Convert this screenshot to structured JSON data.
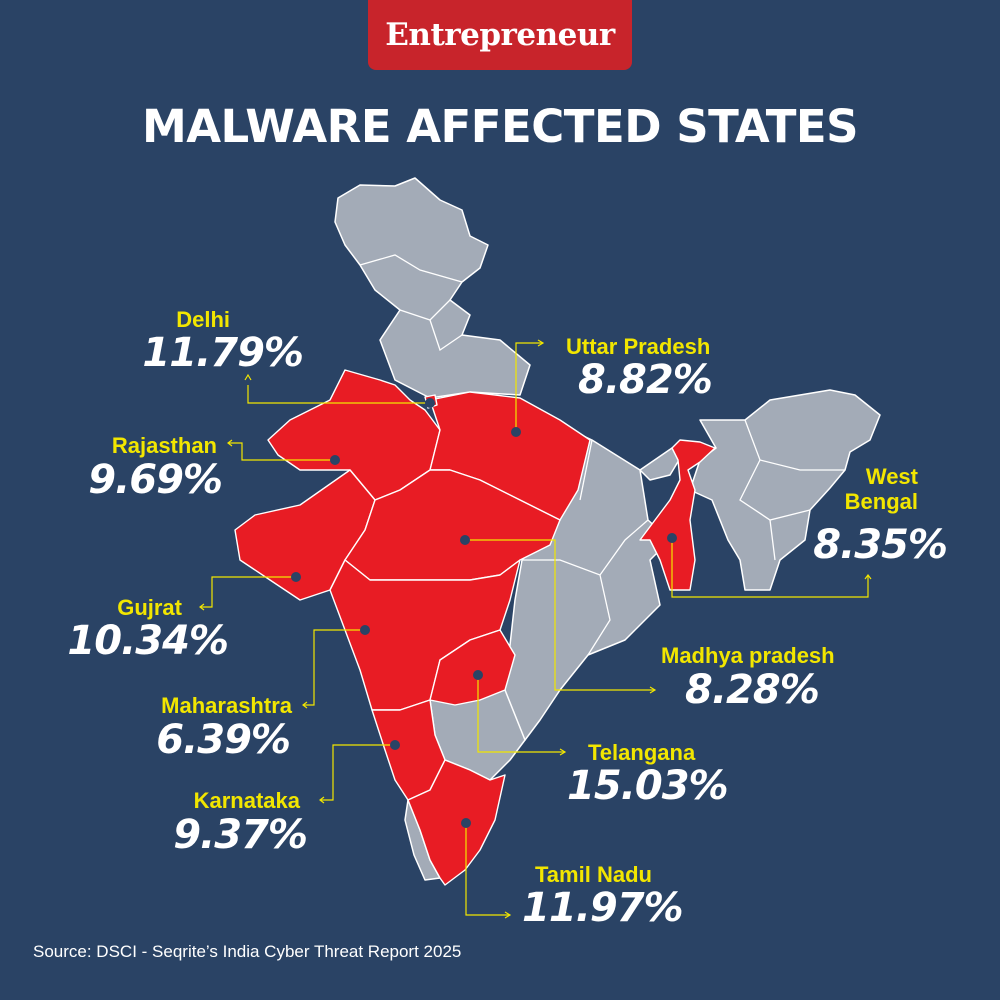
{
  "brand": "Entrepreneur",
  "title": "MALWARE  AFFECTED STATES",
  "source": "Source: DSCI - Seqrite’s India Cyber Threat Report 2025",
  "colors": {
    "background": "#2a4365",
    "highlight_state": "#e81c24",
    "other_state": "#a3abb7",
    "label": "#f2e600",
    "value": "#ffffff",
    "brand_badge": "#c8242b"
  },
  "states": [
    {
      "name": "Delhi",
      "value": "11.79%"
    },
    {
      "name": "Uttar Pradesh",
      "value": "8.82%"
    },
    {
      "name": "Rajasthan",
      "value": "9.69%"
    },
    {
      "name": "West Bengal",
      "value": "8.35%"
    },
    {
      "name": "Gujrat",
      "value": "10.34%"
    },
    {
      "name": "Madhya pradesh",
      "value": "8.28%"
    },
    {
      "name": "Maharashtra",
      "value": "6.39%"
    },
    {
      "name": "Telangana",
      "value": "15.03%"
    },
    {
      "name": "Karnataka",
      "value": "9.37%"
    },
    {
      "name": "Tamil Nadu",
      "value": "11.97%"
    }
  ],
  "chart_data": {
    "type": "table",
    "categories": [
      "Delhi",
      "Uttar Pradesh",
      "Rajasthan",
      "West Bengal",
      "Gujrat",
      "Madhya pradesh",
      "Maharashtra",
      "Telangana",
      "Karnataka",
      "Tamil Nadu"
    ],
    "values": [
      11.79,
      8.82,
      9.69,
      8.35,
      10.34,
      8.28,
      6.39,
      15.03,
      9.37,
      11.97
    ],
    "title": "MALWARE  AFFECTED STATES"
  }
}
